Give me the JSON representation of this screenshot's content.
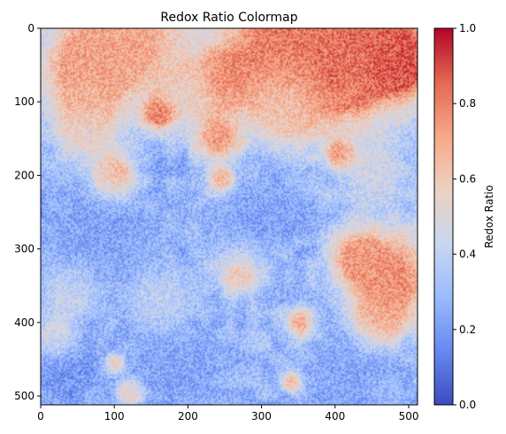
{
  "chart_data": {
    "type": "heatmap",
    "title": "Redox Ratio Colormap",
    "xlabel": "",
    "ylabel": "",
    "image_size": [
      512,
      512
    ],
    "colormap": "coolwarm",
    "colormap_stops": [
      "#3b4cc0",
      "#6788ee",
      "#9abbff",
      "#c9d7f0",
      "#edd1c2",
      "#f7a889",
      "#e26952",
      "#b40426"
    ],
    "xlim": [
      0,
      512
    ],
    "ylim": [
      512,
      0
    ],
    "x_ticks": [
      0,
      100,
      200,
      300,
      400,
      500
    ],
    "y_ticks": [
      0,
      100,
      200,
      300,
      400,
      500
    ],
    "colorbar": {
      "label": "Redox Ratio",
      "range": [
        0.0,
        1.0
      ],
      "ticks": [
        "0.0",
        "0.2",
        "0.4",
        "0.6",
        "0.8",
        "1.0"
      ]
    },
    "background_value": 0.28,
    "regions": [
      {
        "x": 420,
        "y": 30,
        "r": 70,
        "v": 0.85
      },
      {
        "x": 490,
        "y": 45,
        "r": 30,
        "v": 0.9
      },
      {
        "x": 340,
        "y": 8,
        "r": 70,
        "v": 0.8
      },
      {
        "x": 120,
        "y": 8,
        "r": 60,
        "v": 0.7
      },
      {
        "x": 60,
        "y": 60,
        "r": 45,
        "v": 0.72
      },
      {
        "x": 250,
        "y": 70,
        "r": 25,
        "v": 0.8
      },
      {
        "x": 160,
        "y": 115,
        "r": 14,
        "v": 0.9
      },
      {
        "x": 240,
        "y": 150,
        "r": 22,
        "v": 0.75
      },
      {
        "x": 395,
        "y": 65,
        "r": 12,
        "v": 0.88
      },
      {
        "x": 420,
        "y": 80,
        "r": 16,
        "v": 0.75
      },
      {
        "x": 405,
        "y": 170,
        "r": 12,
        "v": 0.78
      },
      {
        "x": 100,
        "y": 200,
        "r": 20,
        "v": 0.78
      },
      {
        "x": 245,
        "y": 205,
        "r": 12,
        "v": 0.75
      },
      {
        "x": 480,
        "y": 340,
        "r": 45,
        "v": 0.78
      },
      {
        "x": 430,
        "y": 310,
        "r": 25,
        "v": 0.72
      },
      {
        "x": 460,
        "y": 395,
        "r": 22,
        "v": 0.7
      },
      {
        "x": 350,
        "y": 400,
        "r": 14,
        "v": 0.72
      },
      {
        "x": 270,
        "y": 335,
        "r": 22,
        "v": 0.62
      },
      {
        "x": 340,
        "y": 480,
        "r": 10,
        "v": 0.7
      },
      {
        "x": 120,
        "y": 495,
        "r": 12,
        "v": 0.68
      },
      {
        "x": 100,
        "y": 455,
        "r": 9,
        "v": 0.7
      },
      {
        "x": 60,
        "y": 140,
        "r": 30,
        "v": 0.55
      },
      {
        "x": 330,
        "y": 110,
        "r": 35,
        "v": 0.52
      },
      {
        "x": 200,
        "y": 90,
        "r": 30,
        "v": 0.5
      },
      {
        "x": 40,
        "y": 360,
        "r": 25,
        "v": 0.48
      },
      {
        "x": 160,
        "y": 370,
        "r": 30,
        "v": 0.45
      },
      {
        "x": 20,
        "y": 420,
        "r": 18,
        "v": 0.55
      },
      {
        "x": 450,
        "y": 200,
        "r": 35,
        "v": 0.42
      },
      {
        "x": 300,
        "y": 250,
        "r": 40,
        "v": 0.22
      },
      {
        "x": 80,
        "y": 280,
        "r": 60,
        "v": 0.22
      },
      {
        "x": 180,
        "y": 460,
        "r": 50,
        "v": 0.22
      },
      {
        "x": 420,
        "y": 470,
        "r": 45,
        "v": 0.23
      },
      {
        "x": 30,
        "y": 470,
        "r": 35,
        "v": 0.18
      }
    ]
  }
}
